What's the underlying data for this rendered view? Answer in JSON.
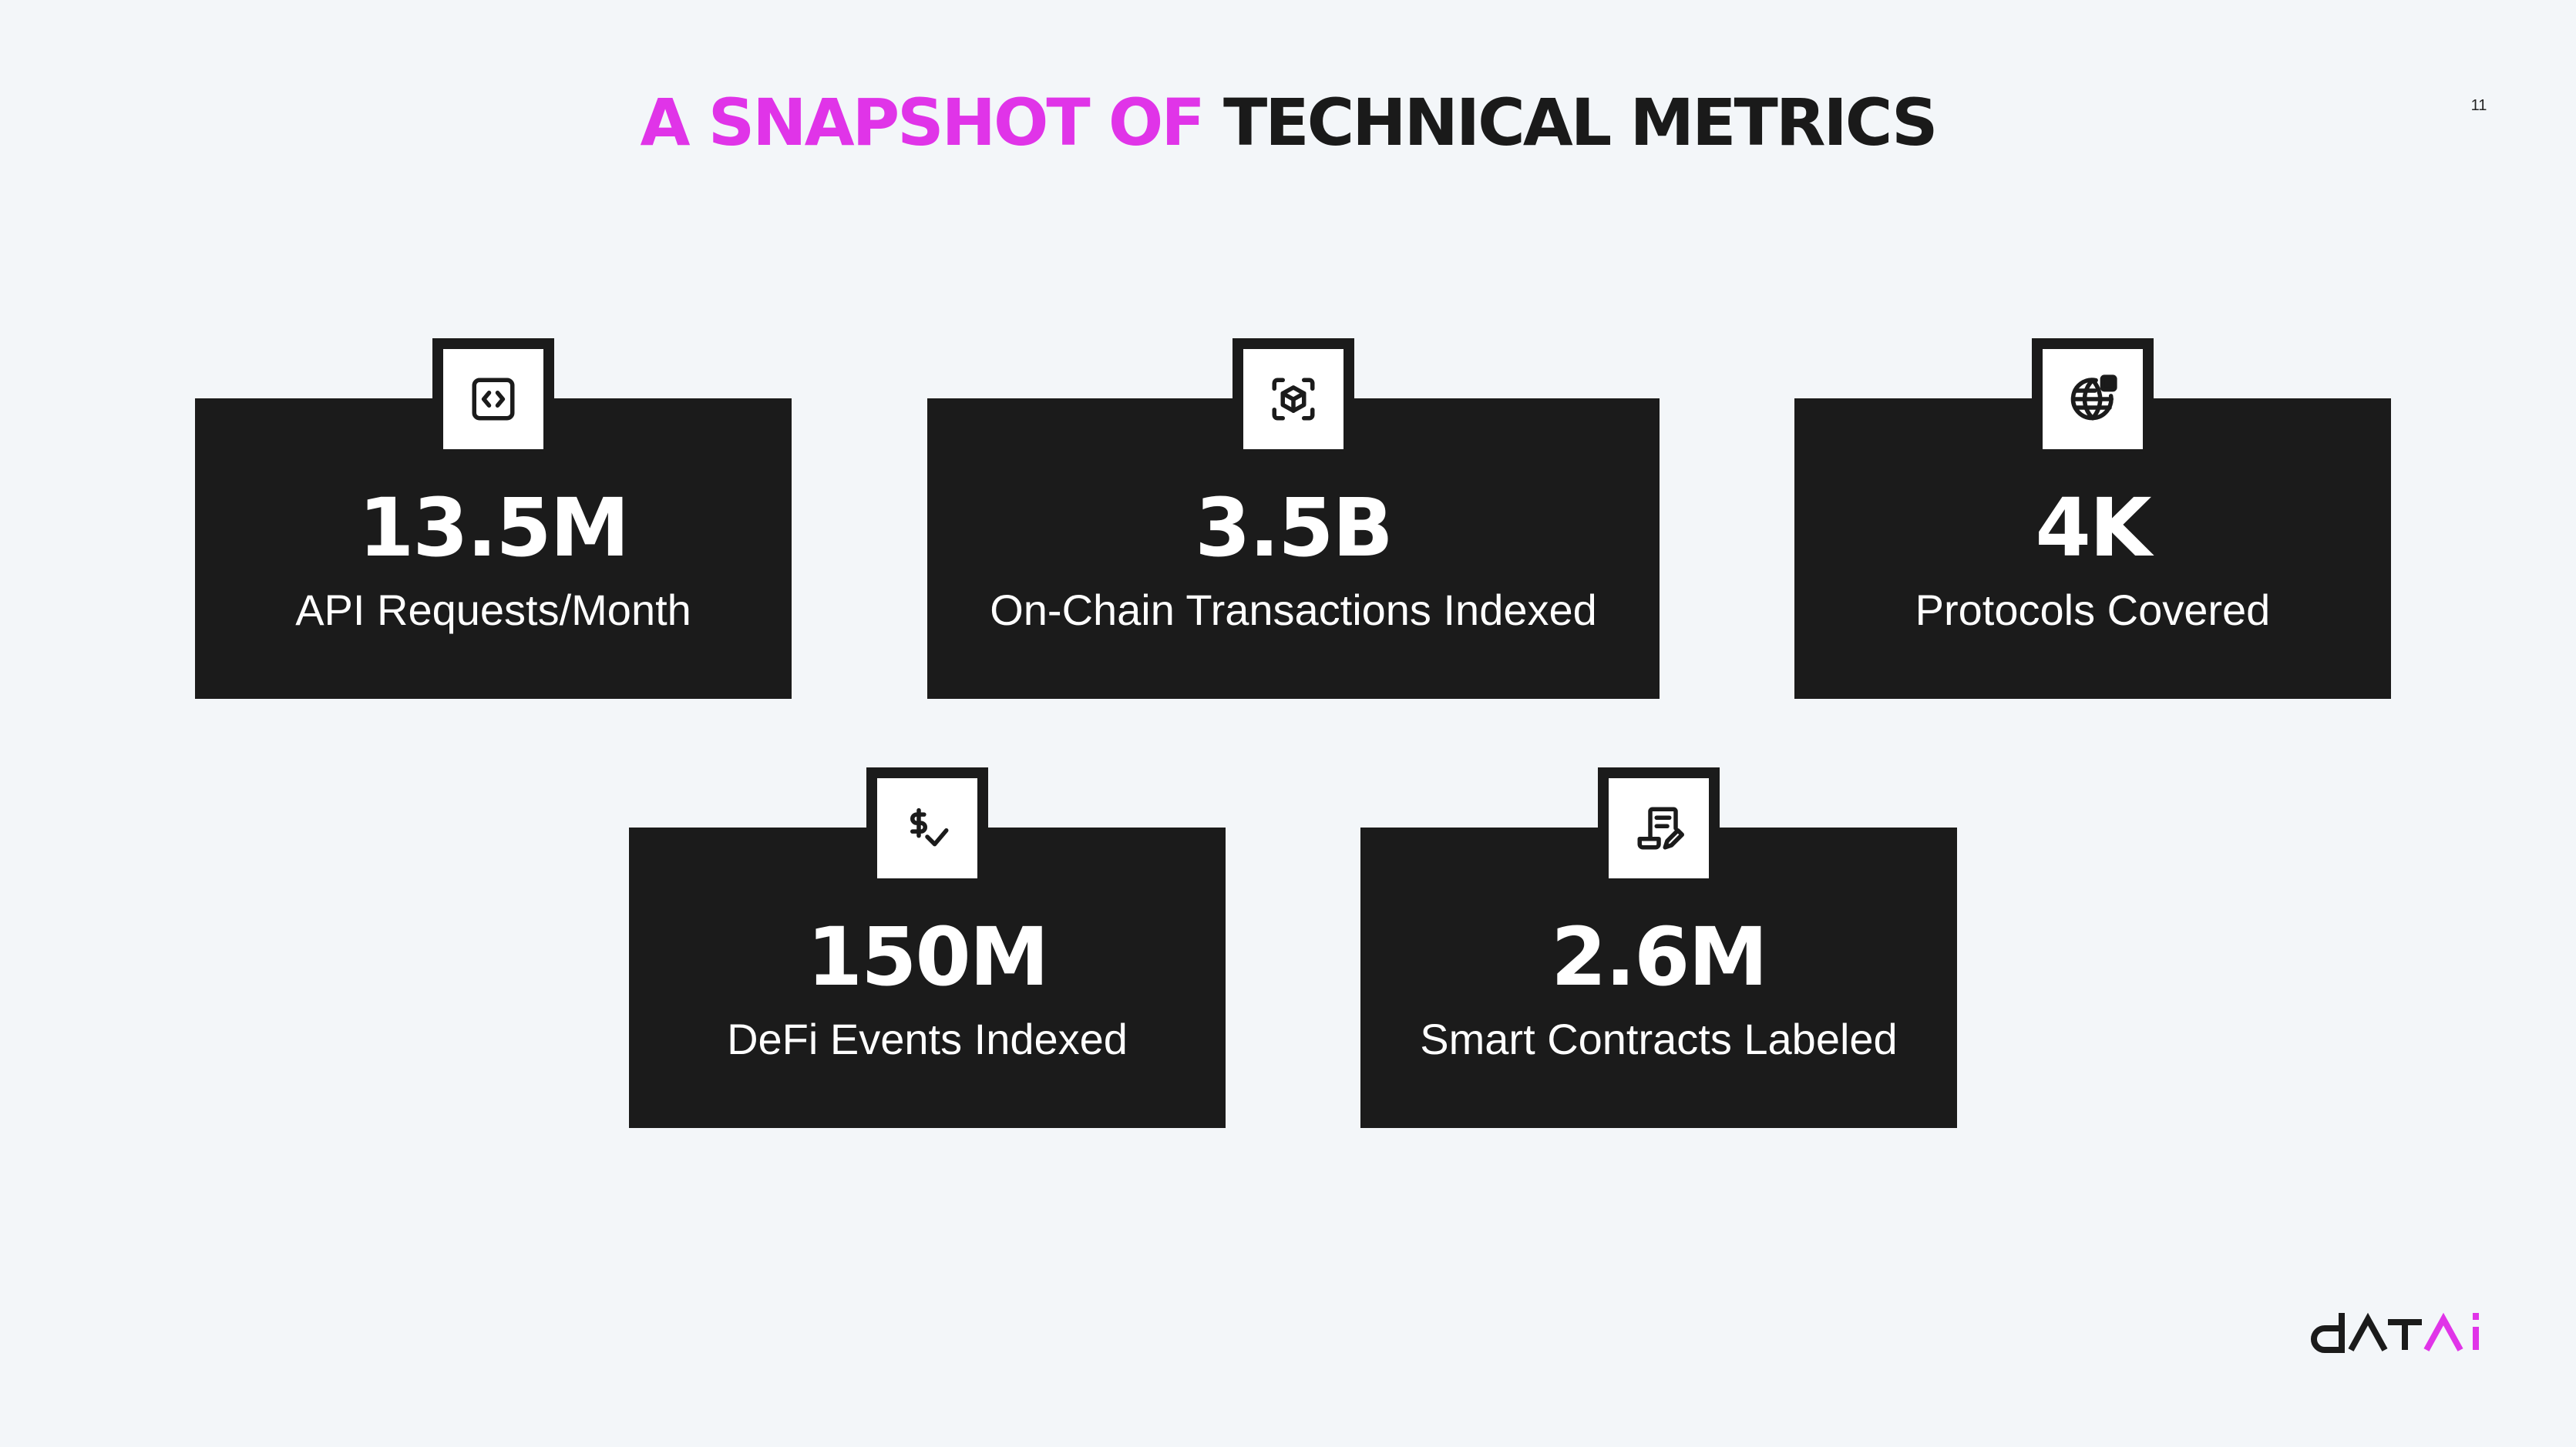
{
  "slide": {
    "title_accent": "A SNAPSHOT OF",
    "title_rest": "TECHNICAL METRICS",
    "page_number": "11"
  },
  "metrics": [
    {
      "value": "13.5M",
      "label": "API Requests/Month",
      "icon": "code-brackets-icon"
    },
    {
      "value": "3.5B",
      "label": "On-Chain Transactions Indexed",
      "icon": "cube-scan-icon"
    },
    {
      "value": "4K",
      "label": "Protocols Covered",
      "icon": "globe-icon"
    },
    {
      "value": "150M",
      "label": "DeFi Events Indexed",
      "icon": "dollar-check-icon"
    },
    {
      "value": "2.6M",
      "label": "Smart Contracts Labeled",
      "icon": "contract-edit-icon"
    }
  ],
  "logo": {
    "text": "datai"
  },
  "colors": {
    "accent": "#e034e8",
    "card_background": "#1b1b1b",
    "page_background": "#f3f6f9",
    "title_dark": "#1a1a1a"
  }
}
